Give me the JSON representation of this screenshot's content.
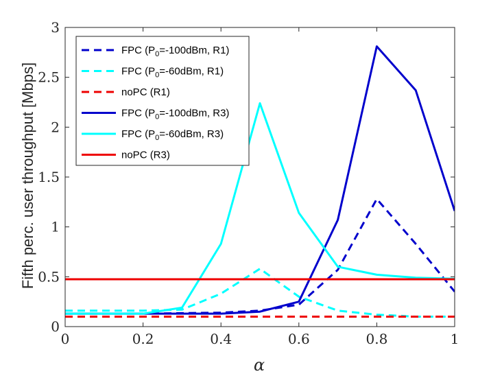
{
  "chart_data": {
    "type": "line",
    "xlabel": "α",
    "ylabel": "Fifth perc. user throughput [Mbps]",
    "xlim": [
      0,
      1
    ],
    "ylim": [
      0,
      3
    ],
    "x_ticks": [
      "0",
      "0.2",
      "0.4",
      "0.6",
      "0.8",
      "1"
    ],
    "y_ticks": [
      "0",
      "0.5",
      "1",
      "1.5",
      "2",
      "2.5",
      "3"
    ],
    "grid": false,
    "legend_position": "top-left",
    "series": [
      {
        "name": "FPC (P0=-100dBm, R1)",
        "legend": {
          "pre": "FPC (P",
          "sub": "0",
          "post": "=-100dBm, R1)"
        },
        "color": "#0000cc",
        "dash": true,
        "x": [
          0,
          0.1,
          0.2,
          0.3,
          0.4,
          0.5,
          0.6,
          0.7,
          0.8,
          0.9,
          1.0
        ],
        "y": [
          0.13,
          0.13,
          0.13,
          0.135,
          0.14,
          0.16,
          0.22,
          0.57,
          1.28,
          0.83,
          0.35
        ]
      },
      {
        "name": "FPC (P0=-60dBm, R1)",
        "legend": {
          "pre": "FPC (P",
          "sub": "0",
          "post": "=-60dBm, R1)"
        },
        "color": "#00ffff",
        "dash": true,
        "x": [
          0,
          0.1,
          0.2,
          0.3,
          0.4,
          0.5,
          0.6,
          0.7,
          0.8,
          0.9,
          1.0
        ],
        "y": [
          0.16,
          0.16,
          0.16,
          0.17,
          0.33,
          0.58,
          0.3,
          0.16,
          0.12,
          0.1,
          0.1
        ]
      },
      {
        "name": "noPC (R1)",
        "legend": {
          "pre": "noPC (R1)",
          "sub": "",
          "post": ""
        },
        "color": "#ee0000",
        "dash": true,
        "x": [
          0,
          1.0
        ],
        "y": [
          0.1,
          0.1
        ]
      },
      {
        "name": "FPC (P0=-100dBm, R3)",
        "legend": {
          "pre": "FPC (P",
          "sub": "0",
          "post": "=-100dBm, R3)"
        },
        "color": "#0000cc",
        "dash": false,
        "x": [
          0,
          0.1,
          0.2,
          0.3,
          0.4,
          0.5,
          0.6,
          0.7,
          0.8,
          0.9,
          1.0
        ],
        "y": [
          0.13,
          0.13,
          0.13,
          0.13,
          0.13,
          0.15,
          0.25,
          1.07,
          2.81,
          2.37,
          1.16
        ]
      },
      {
        "name": "FPC (P0=-60dBm, R3)",
        "legend": {
          "pre": "FPC (P",
          "sub": "0",
          "post": "=-60dBm, R3)"
        },
        "color": "#00ffff",
        "dash": false,
        "x": [
          0,
          0.1,
          0.2,
          0.3,
          0.4,
          0.5,
          0.6,
          0.7,
          0.8,
          0.9,
          1.0
        ],
        "y": [
          0.13,
          0.13,
          0.13,
          0.19,
          0.83,
          2.24,
          1.14,
          0.6,
          0.52,
          0.49,
          0.48
        ]
      },
      {
        "name": "noPC (R3)",
        "legend": {
          "pre": "noPC (R3)",
          "sub": "",
          "post": ""
        },
        "color": "#ee0000",
        "dash": false,
        "x": [
          0,
          1.0
        ],
        "y": [
          0.475,
          0.475
        ]
      }
    ]
  }
}
